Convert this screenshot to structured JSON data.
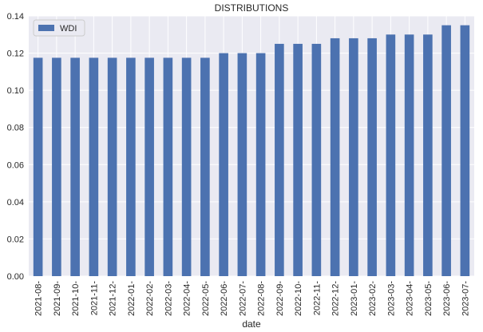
{
  "chart_data": {
    "type": "bar",
    "title": "DISTRIBUTIONS",
    "xlabel": "date",
    "ylabel": "",
    "ylim": [
      0,
      0.14
    ],
    "yticks": [
      "0.00",
      "0.02",
      "0.04",
      "0.06",
      "0.08",
      "0.10",
      "0.12",
      "0.14"
    ],
    "categories": [
      "2021-08-",
      "2021-09-",
      "2021-10-",
      "2021-11-",
      "2021-12-",
      "2022-01-",
      "2022-02-",
      "2022-03-",
      "2022-04-",
      "2022-05-",
      "2022-06-",
      "2022-07-",
      "2022-08-",
      "2022-09-",
      "2022-10-",
      "2022-11-",
      "2022-12-",
      "2023-01-",
      "2023-02-",
      "2023-03-",
      "2023-04-",
      "2023-05-",
      "2023-06-",
      "2023-07-"
    ],
    "series": [
      {
        "name": "WDI",
        "color": "#4c72b0",
        "values": [
          0.1175,
          0.1175,
          0.1175,
          0.1175,
          0.1175,
          0.1175,
          0.1175,
          0.1175,
          0.1175,
          0.1175,
          0.12,
          0.12,
          0.12,
          0.125,
          0.125,
          0.125,
          0.128,
          0.128,
          0.128,
          0.13,
          0.13,
          0.13,
          0.135,
          0.135
        ]
      }
    ],
    "grid": true,
    "legend_position": "top-left",
    "background_color": "#eaeaf2",
    "grid_color": "#ffffff"
  }
}
